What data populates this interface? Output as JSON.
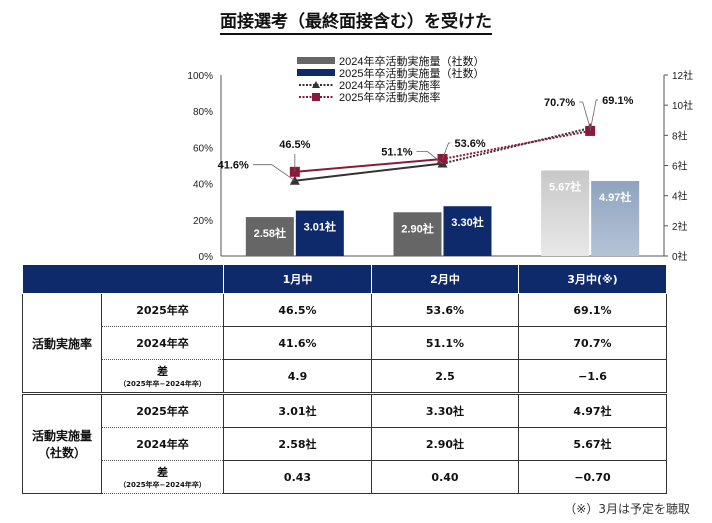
{
  "title": "面接選考（最終面接含む）を受けた",
  "chart_data": {
    "type": "bar+line",
    "categories": [
      "1月中",
      "2月中",
      "3月中(※)"
    ],
    "left_axis": {
      "range": [
        0,
        100
      ],
      "ticks": [
        "0%",
        "20%",
        "40%",
        "60%",
        "80%",
        "100%"
      ]
    },
    "right_axis": {
      "range": [
        0,
        12
      ],
      "ticks": [
        "0社",
        "2社",
        "4社",
        "6社",
        "8社",
        "10社",
        "12社"
      ]
    },
    "legend_position": "top",
    "series": [
      {
        "name": "2024年卒活動実施量（社数）",
        "kind": "bar",
        "axis": "right",
        "values": [
          2.58,
          2.9,
          5.67
        ],
        "labels": [
          "2.58社",
          "2.90社",
          "5.67社"
        ],
        "color": "#666666"
      },
      {
        "name": "2025年卒活動実施量（社数）",
        "kind": "bar",
        "axis": "right",
        "values": [
          3.01,
          3.3,
          4.97
        ],
        "labels": [
          "3.01社",
          "3.30社",
          "4.97社"
        ],
        "color": "#0f2a6b"
      },
      {
        "name": "2024年卒活動実施率",
        "kind": "line",
        "axis": "left",
        "values": [
          41.6,
          51.1,
          70.7
        ],
        "labels": [
          "41.6%",
          "51.1%",
          "70.7%"
        ],
        "color": "#333333",
        "marker": "triangle"
      },
      {
        "name": "2025年卒活動実施率",
        "kind": "line",
        "axis": "left",
        "values": [
          46.5,
          53.6,
          69.1
        ],
        "labels": [
          "46.5%",
          "53.6%",
          "69.1%"
        ],
        "color": "#8b1a3a",
        "marker": "square"
      }
    ]
  },
  "table": {
    "headers": [
      "1月中",
      "2月中",
      "3月中(※)"
    ],
    "groups": [
      {
        "label": "活動実施率",
        "rows": [
          {
            "label": "2025年卒",
            "values": [
              "46.5%",
              "53.6%",
              "69.1%"
            ]
          },
          {
            "label": "2024年卒",
            "values": [
              "41.6%",
              "51.1%",
              "70.7%"
            ]
          },
          {
            "label": "差",
            "sublabel": "（2025年卒−2024年卒）",
            "values": [
              "4.9",
              "2.5",
              "−1.6"
            ]
          }
        ]
      },
      {
        "label": "活動実施量",
        "label2": "（社数）",
        "rows": [
          {
            "label": "2025年卒",
            "values": [
              "3.01社",
              "3.30社",
              "4.97社"
            ]
          },
          {
            "label": "2024年卒",
            "values": [
              "2.58社",
              "2.90社",
              "5.67社"
            ]
          },
          {
            "label": "差",
            "sublabel": "（2025年卒−2024年卒）",
            "values": [
              "0.43",
              "0.40",
              "−0.70"
            ]
          }
        ]
      }
    ]
  },
  "note": "（※）3月は予定を聴取"
}
